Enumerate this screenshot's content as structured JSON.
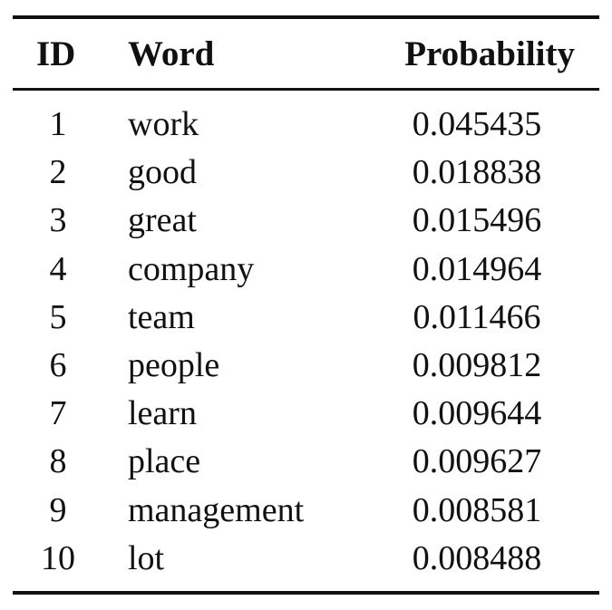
{
  "table": {
    "headers": {
      "id": "ID",
      "word": "Word",
      "probability": "Probability"
    },
    "rows": [
      {
        "id": "1",
        "word": "work",
        "probability": "0.045435"
      },
      {
        "id": "2",
        "word": "good",
        "probability": "0.018838"
      },
      {
        "id": "3",
        "word": "great",
        "probability": "0.015496"
      },
      {
        "id": "4",
        "word": "company",
        "probability": "0.014964"
      },
      {
        "id": "5",
        "word": "team",
        "probability": "0.011466"
      },
      {
        "id": "6",
        "word": "people",
        "probability": "0.009812"
      },
      {
        "id": "7",
        "word": "learn",
        "probability": "0.009644"
      },
      {
        "id": "8",
        "word": "place",
        "probability": "0.009627"
      },
      {
        "id": "9",
        "word": "management",
        "probability": "0.008581"
      },
      {
        "id": "10",
        "word": "lot",
        "probability": "0.008488"
      }
    ]
  }
}
